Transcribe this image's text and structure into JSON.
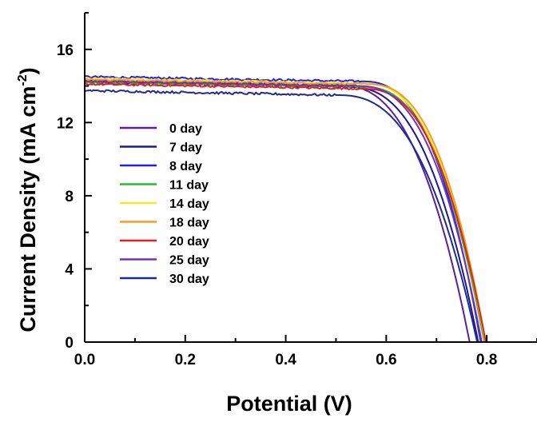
{
  "chart_data": {
    "type": "line",
    "xlabel": "Potential (V)",
    "ylabel_main": "Current Density (mA cm",
    "ylabel_sup": "-2",
    "ylabel_close": ")",
    "xlim": [
      0.0,
      0.9
    ],
    "ylim": [
      0,
      18
    ],
    "x_ticks": [
      0.0,
      0.2,
      0.4,
      0.6,
      0.8
    ],
    "x_tick_labels": [
      "0.0",
      "0.2",
      "0.4",
      "0.6",
      "0.8"
    ],
    "y_ticks": [
      0,
      4,
      8,
      12,
      16
    ],
    "y_tick_labels": [
      "0",
      "4",
      "8",
      "12",
      "16"
    ],
    "grid": false,
    "legend_position": "left-center",
    "series": [
      {
        "name": "0 day",
        "color": "#5a1e9e",
        "jsc": 14.3,
        "voc": 0.766,
        "knee": 0.5,
        "noise": 0.06
      },
      {
        "name": "7 day",
        "color": "#1a1a8a",
        "jsc": 14.2,
        "voc": 0.783,
        "knee": 0.52,
        "noise": 0.06
      },
      {
        "name": "8 day",
        "color": "#2020ee",
        "jsc": 14.5,
        "voc": 0.788,
        "knee": 0.55,
        "noise": 0.06
      },
      {
        "name": "11 day",
        "color": "#2eb82e",
        "jsc": 14.2,
        "voc": 0.795,
        "knee": 0.55,
        "noise": 0.05
      },
      {
        "name": "14 day",
        "color": "#f0ea20",
        "jsc": 14.4,
        "voc": 0.797,
        "knee": 0.55,
        "noise": 0.05
      },
      {
        "name": "18 day",
        "color": "#f59d20",
        "jsc": 14.35,
        "voc": 0.798,
        "knee": 0.56,
        "noise": 0.05
      },
      {
        "name": "20 day",
        "color": "#e81e1e",
        "jsc": 14.1,
        "voc": 0.798,
        "knee": 0.55,
        "noise": 0.05
      },
      {
        "name": "25 day",
        "color": "#7a2eb8",
        "jsc": 14.25,
        "voc": 0.79,
        "knee": 0.54,
        "noise": 0.05
      },
      {
        "name": "30 day",
        "color": "#1e2a96",
        "jsc": 13.75,
        "voc": 0.781,
        "knee": 0.5,
        "noise": 0.06
      }
    ]
  }
}
